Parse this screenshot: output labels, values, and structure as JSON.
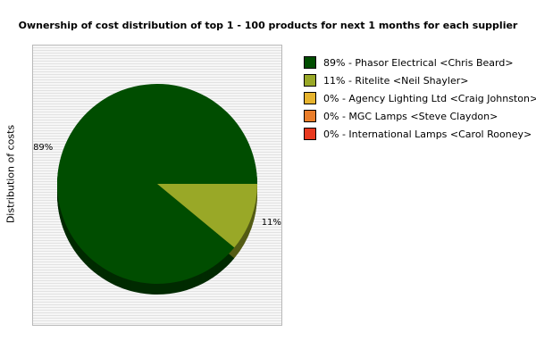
{
  "chart_data": {
    "type": "pie",
    "title": "Ownership of cost distribution of top 1 - 100 products for next 1 months for each supplier",
    "ylabel": "Distribution of costs",
    "categories": [
      "Phasor Electrical <Chris Beard>",
      "Ritelite <Neil Shayler>",
      "Agency Lighting Ltd <Craig Johnston>",
      "MGC Lamps <Steve Claydon>",
      "International Lamps <Carol Rooney>"
    ],
    "values": [
      89,
      11,
      0,
      0,
      0
    ],
    "colors": [
      "#004d00",
      "#99a827",
      "#e6b32e",
      "#ea7d2a",
      "#e8391f"
    ],
    "slice_labels": [
      "89%",
      "11%",
      "",
      "",
      ""
    ],
    "legend": [
      "89% - Phasor Electrical <Chris Beard>",
      "11% - Ritelite <Neil Shayler>",
      "0% - Agency Lighting Ltd <Craig Johnston>",
      "0% - MGC Lamps <Steve Claydon>",
      "0% - International Lamps <Carol Rooney>"
    ],
    "legend_position": "right"
  }
}
